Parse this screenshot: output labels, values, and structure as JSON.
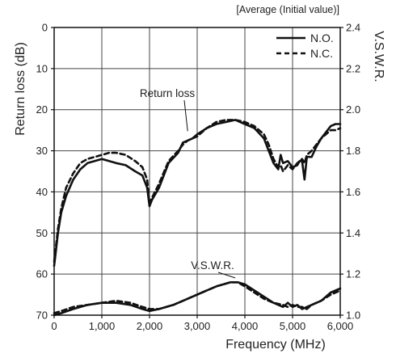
{
  "chart_data": {
    "type": "line",
    "note": "[Average (Initial value)]",
    "xlabel": "Frequency (MHz)",
    "ylabel_left": "Return loss (dB)",
    "ylabel_right": "V.S.W.R.",
    "xlim": [
      0,
      6000
    ],
    "ylim_left": [
      70,
      0
    ],
    "ylim_right": [
      1.0,
      2.4
    ],
    "x_ticks": [
      0,
      1000,
      2000,
      3000,
      4000,
      5000,
      6000
    ],
    "x_tick_labels": [
      "0",
      "1,000",
      "2,000",
      "3,000",
      "4,000",
      "5,000",
      "6,000"
    ],
    "y_left_ticks": [
      0,
      10,
      20,
      30,
      40,
      50,
      60,
      70
    ],
    "y_left_tick_labels": [
      "0",
      "10",
      "20",
      "30",
      "40",
      "50",
      "60",
      "70"
    ],
    "y_right_ticks": [
      1.0,
      1.2,
      1.4,
      1.6,
      1.8,
      2.0,
      2.2,
      2.4
    ],
    "y_right_tick_labels": [
      "1.0",
      "1.2",
      "1.4",
      "1.6",
      "1.8",
      "2.0",
      "2.2",
      "2.4"
    ],
    "grid": true,
    "legend_position": "top-right",
    "legend": [
      {
        "label": "N.O.",
        "style": "solid"
      },
      {
        "label": "N.C.",
        "style": "dashed"
      }
    ],
    "annotations": [
      {
        "text": "Return loss",
        "points_to": {
          "x": 2800,
          "y": 27,
          "axis": "left"
        }
      },
      {
        "text": "V.S.W.R.",
        "points_to": {
          "x": 3900,
          "y": 1.15,
          "axis": "right"
        }
      }
    ],
    "series": [
      {
        "name": "N.O.",
        "group": "Return loss",
        "axis": "left",
        "style": "solid",
        "x": [
          0,
          30,
          80,
          150,
          250,
          400,
          550,
          700,
          850,
          1000,
          1150,
          1300,
          1500,
          1700,
          1850,
          1950,
          2000,
          2050,
          2200,
          2400,
          2600,
          2700,
          2800,
          2900,
          3000,
          3200,
          3400,
          3600,
          3800,
          4000,
          4200,
          4400,
          4500,
          4600,
          4700,
          4750,
          4800,
          4900,
          5000,
          5100,
          5150,
          5200,
          5250,
          5300,
          5400,
          5500,
          5600,
          5700,
          5800,
          5900,
          6000
        ],
        "y": [
          58,
          55,
          50,
          45,
          41,
          37,
          34.5,
          33,
          32.5,
          32,
          32.5,
          33,
          33.5,
          35,
          36,
          39,
          43.5,
          42,
          39,
          33,
          30.5,
          28,
          27.5,
          27,
          26,
          24.5,
          23.5,
          23,
          22.5,
          23.5,
          24.5,
          27,
          30,
          33,
          34.5,
          31,
          33,
          32.5,
          34,
          33.5,
          32.5,
          32.5,
          37,
          31.5,
          31.5,
          29,
          27,
          25.5,
          24,
          23.5,
          23.5
        ]
      },
      {
        "name": "N.C.",
        "group": "Return loss",
        "axis": "left",
        "style": "dashed",
        "x": [
          0,
          30,
          80,
          150,
          250,
          400,
          550,
          700,
          850,
          1000,
          1150,
          1300,
          1500,
          1700,
          1850,
          1950,
          2000,
          2050,
          2200,
          2400,
          2600,
          2700,
          2800,
          2900,
          3000,
          3200,
          3400,
          3600,
          3800,
          4000,
          4200,
          4400,
          4500,
          4600,
          4700,
          4750,
          4800,
          4900,
          5000,
          5100,
          5150,
          5200,
          5250,
          5300,
          5400,
          5500,
          5600,
          5700,
          5800,
          5900,
          6000
        ],
        "y": [
          57,
          54,
          49,
          44,
          39,
          35.5,
          33,
          32,
          31.5,
          31,
          30.5,
          30.5,
          31,
          32.5,
          34,
          37,
          43,
          41.5,
          38,
          32.5,
          30,
          28.5,
          27.5,
          27,
          26.5,
          24.5,
          23,
          22.5,
          22.5,
          23,
          24,
          26,
          28.5,
          32,
          34,
          33.5,
          35,
          33.5,
          34.5,
          33,
          32.5,
          32,
          33,
          31,
          30,
          28.5,
          27,
          26,
          25,
          25,
          24.5
        ]
      },
      {
        "name": "N.O.",
        "group": "V.S.W.R.",
        "axis": "right",
        "style": "solid",
        "x": [
          0,
          150,
          400,
          700,
          1000,
          1300,
          1600,
          1850,
          2000,
          2200,
          2500,
          2800,
          3100,
          3400,
          3700,
          3850,
          4000,
          4200,
          4400,
          4600,
          4800,
          4900,
          5000,
          5100,
          5200,
          5300,
          5400,
          5600,
          5800,
          6000
        ],
        "y": [
          1.0,
          1.01,
          1.03,
          1.05,
          1.06,
          1.06,
          1.05,
          1.03,
          1.02,
          1.03,
          1.05,
          1.08,
          1.11,
          1.14,
          1.16,
          1.16,
          1.15,
          1.12,
          1.09,
          1.06,
          1.04,
          1.06,
          1.04,
          1.05,
          1.03,
          1.04,
          1.05,
          1.07,
          1.11,
          1.13
        ]
      },
      {
        "name": "N.C.",
        "group": "V.S.W.R.",
        "axis": "right",
        "style": "dashed",
        "x": [
          0,
          150,
          400,
          700,
          1000,
          1300,
          1600,
          1850,
          2000,
          2200,
          2500,
          2800,
          3100,
          3400,
          3700,
          3850,
          4000,
          4200,
          4400,
          4600,
          4800,
          4900,
          5000,
          5100,
          5200,
          5300,
          5400,
          5600,
          5800,
          6000
        ],
        "y": [
          1.01,
          1.02,
          1.04,
          1.05,
          1.06,
          1.07,
          1.06,
          1.04,
          1.03,
          1.03,
          1.05,
          1.08,
          1.11,
          1.14,
          1.16,
          1.16,
          1.14,
          1.11,
          1.08,
          1.06,
          1.05,
          1.04,
          1.05,
          1.04,
          1.04,
          1.03,
          1.05,
          1.07,
          1.1,
          1.12
        ]
      }
    ]
  }
}
